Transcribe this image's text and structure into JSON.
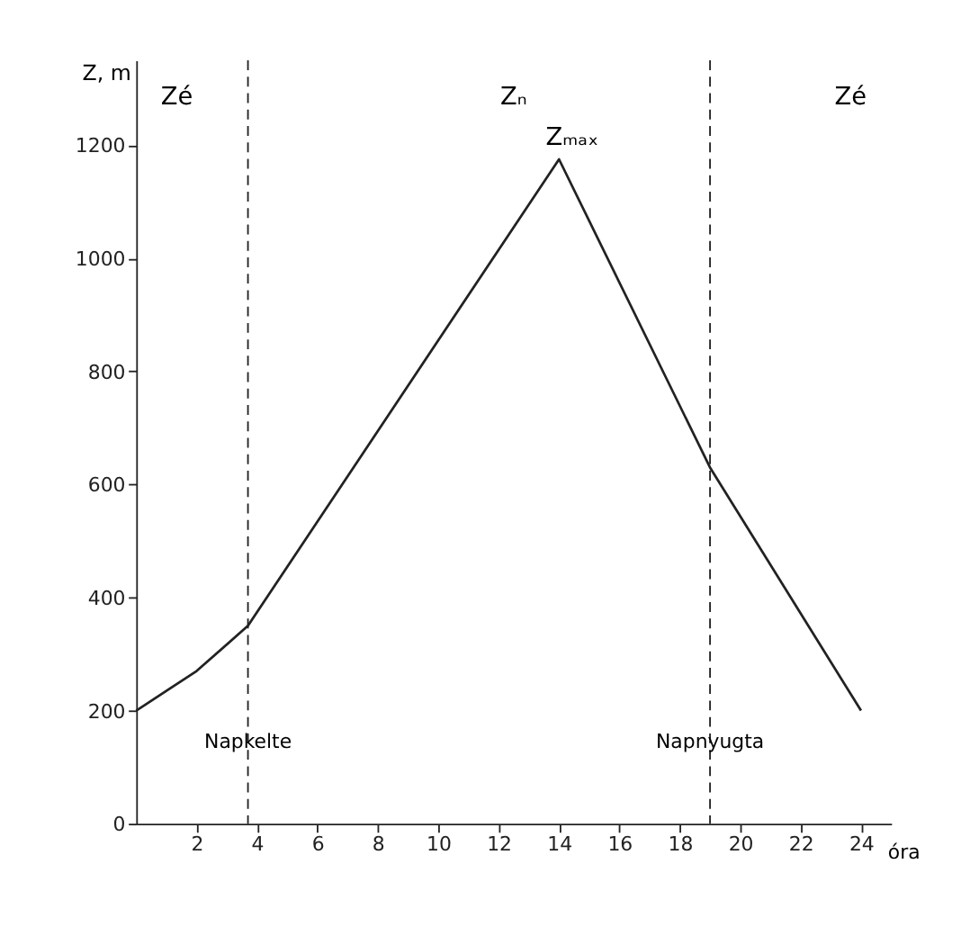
{
  "chart_data": {
    "type": "line",
    "xlabel": "óra",
    "ylabel": "Z, m",
    "x": [
      0,
      2,
      3.7,
      14,
      19,
      24
    ],
    "series": [
      {
        "color": "#222222",
        "values": [
          200,
          270,
          350,
          1175,
          630,
          200
        ]
      }
    ],
    "xlim": [
      0,
      25
    ],
    "ylim": [
      0,
      1350
    ],
    "xticks": [
      2,
      4,
      6,
      8,
      10,
      12,
      14,
      16,
      18,
      20,
      22,
      24
    ],
    "yticks": [
      0,
      200,
      400,
      600,
      800,
      1000,
      1200
    ],
    "grid": false,
    "marker": "none",
    "line_style": "solid",
    "ref_lines": [
      {
        "axis": "x",
        "value": 3.7,
        "label": "Napkelte",
        "line_style": "dashed"
      },
      {
        "axis": "x",
        "value": 19,
        "label": "Napnyugta",
        "line_style": "dashed"
      }
    ],
    "annotations": [
      "Zé",
      "Zₙ",
      "Zé",
      {
        "text": "Zₘₐₓ",
        "x": 14,
        "y": 1175
      }
    ]
  }
}
